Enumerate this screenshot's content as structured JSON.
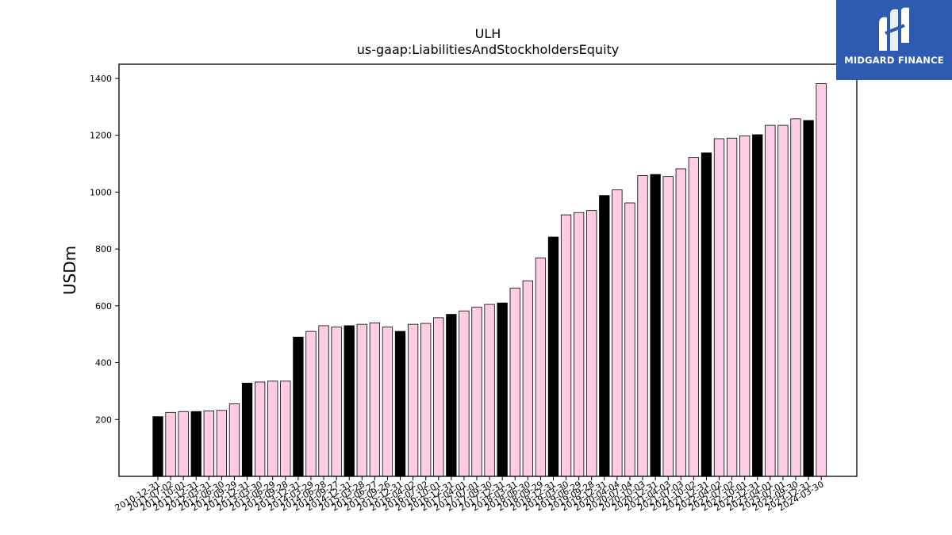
{
  "logo": {
    "text": "MIDGARD FINANCE",
    "mark_icon": "midgard-m-icon",
    "background": "#2e5bb0"
  },
  "colors": {
    "bar_default": "#ffcce6",
    "bar_highlight": "#000000",
    "bar_edge": "#000000"
  },
  "chart_data": {
    "type": "bar",
    "title": "ULH",
    "subtitle": "us-gaap:LiabilitiesAndStockholdersEquity",
    "ylabel": "USDm",
    "xlabel": "",
    "ylim": [
      0,
      1450
    ],
    "yticks": [
      200,
      400,
      600,
      800,
      1000,
      1200,
      1400
    ],
    "grid": false,
    "categories": [
      "2010-12-31",
      "2011-07-02",
      "2011-10-01",
      "2011-12-31",
      "2012-03-31",
      "2012-06-30",
      "2012-09-29",
      "2012-12-31",
      "2013-03-30",
      "2013-06-29",
      "2013-09-28",
      "2013-12-31",
      "2014-03-29",
      "2014-06-28",
      "2014-09-27",
      "2014-12-31",
      "2015-03-28",
      "2015-06-27",
      "2015-09-26",
      "2015-12-31",
      "2016-04-02",
      "2016-07-02",
      "2016-10-01",
      "2016-12-31",
      "2017-04-01",
      "2017-07-01",
      "2017-09-30",
      "2017-12-31",
      "2018-03-31",
      "2018-06-30",
      "2018-09-29",
      "2018-12-31",
      "2019-03-30",
      "2019-06-29",
      "2019-09-28",
      "2019-12-31",
      "2020-04-04",
      "2020-07-04",
      "2020-10-03",
      "2020-12-31",
      "2021-04-03",
      "2021-07-03",
      "2021-10-02",
      "2021-12-31",
      "2022-04-02",
      "2022-07-02",
      "2022-10-01",
      "2022-12-31",
      "2023-04-01",
      "2023-07-01",
      "2023-09-30",
      "2023-12-31",
      "2024-03-30"
    ],
    "values": [
      210,
      225,
      228,
      228,
      230,
      232,
      255,
      328,
      332,
      335,
      335,
      490,
      510,
      530,
      525,
      530,
      535,
      540,
      525,
      510,
      535,
      538,
      558,
      570,
      582,
      595,
      605,
      610,
      662,
      688,
      768,
      842,
      920,
      928,
      935,
      988,
      1008,
      962,
      1058,
      1062,
      1055,
      1082,
      1122,
      1138,
      1188,
      1190,
      1198,
      1202,
      1235,
      1235,
      1258,
      1252,
      1382
    ],
    "highlight": [
      true,
      false,
      false,
      true,
      false,
      false,
      false,
      true,
      false,
      false,
      false,
      true,
      false,
      false,
      false,
      true,
      false,
      false,
      false,
      true,
      false,
      false,
      false,
      true,
      false,
      false,
      false,
      true,
      false,
      false,
      false,
      true,
      false,
      false,
      false,
      true,
      false,
      false,
      false,
      true,
      false,
      false,
      false,
      true,
      false,
      false,
      false,
      true,
      false,
      false,
      false,
      true,
      false
    ]
  }
}
